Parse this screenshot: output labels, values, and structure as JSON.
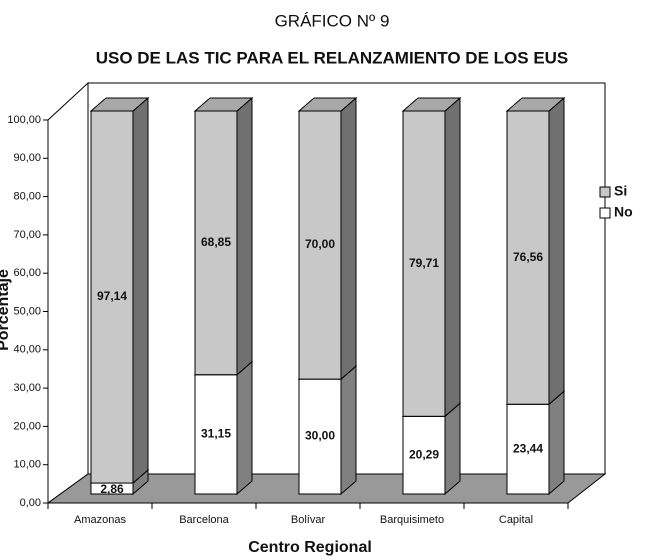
{
  "chart_data": {
    "type": "bar3d_stacked",
    "title": "GRÁFICO Nº 9",
    "subtitle": "USO DE LAS TIC PARA EL RELANZAMIENTO DE LOS EUS",
    "x_label": "Centro Regional",
    "y_label": "Porcentaje",
    "categories": [
      "Amazonas",
      "Barcelona",
      "Bolívar",
      "Barquisimeto",
      "Capital"
    ],
    "series": [
      {
        "name": "Si",
        "color": "#c8c8c8",
        "values": [
          97.14,
          68.85,
          70.0,
          79.71,
          76.56
        ],
        "value_labels": [
          "97,14",
          "68,85",
          "70,00",
          "79,71",
          "76,56"
        ]
      },
      {
        "name": "No",
        "color": "#ffffff",
        "values": [
          2.86,
          31.15,
          30.0,
          20.29,
          23.44
        ],
        "value_labels": [
          "2,86",
          "31,15",
          "30,00",
          "20,29",
          "23,44"
        ]
      }
    ],
    "ylim": [
      0,
      100
    ],
    "yticks": [
      {
        "value": 0,
        "label": "0,00"
      },
      {
        "value": 10,
        "label": "10,00"
      },
      {
        "value": 20,
        "label": "20,00"
      },
      {
        "value": 30,
        "label": "30,00"
      },
      {
        "value": 40,
        "label": "40,00"
      },
      {
        "value": 50,
        "label": "50,00"
      },
      {
        "value": 60,
        "label": "60,00"
      },
      {
        "value": 70,
        "label": "70,00"
      },
      {
        "value": 80,
        "label": "80,00"
      },
      {
        "value": 90,
        "label": "90,00"
      },
      {
        "value": 100,
        "label": "100,00"
      }
    ],
    "legend": "right",
    "grid": false
  }
}
